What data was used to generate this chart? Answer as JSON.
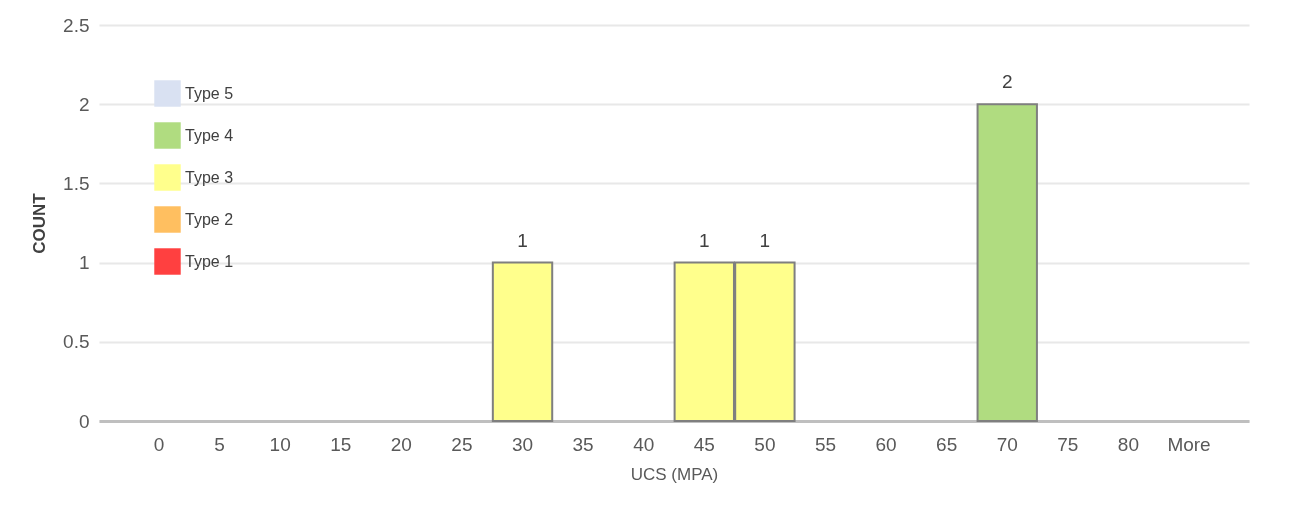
{
  "chart_data": {
    "type": "bar",
    "xlabel": "UCS (MPA)",
    "ylabel": "COUNT",
    "categories": [
      "0",
      "5",
      "10",
      "15",
      "20",
      "25",
      "30",
      "35",
      "40",
      "45",
      "50",
      "55",
      "60",
      "65",
      "70",
      "75",
      "80",
      "More"
    ],
    "series": [
      {
        "name": "Type 1",
        "color": "#ff4040",
        "values": [
          null,
          null,
          null,
          null,
          null,
          null,
          null,
          null,
          null,
          null,
          null,
          null,
          null,
          null,
          null,
          null,
          null,
          null
        ]
      },
      {
        "name": "Type 2",
        "color": "#ffbf60",
        "values": [
          null,
          null,
          null,
          null,
          null,
          null,
          null,
          null,
          null,
          null,
          null,
          null,
          null,
          null,
          null,
          null,
          null,
          null
        ]
      },
      {
        "name": "Type 3",
        "color": "#ffff8c",
        "values": [
          null,
          null,
          null,
          null,
          null,
          null,
          1,
          null,
          null,
          1,
          1,
          null,
          null,
          null,
          null,
          null,
          null,
          null
        ]
      },
      {
        "name": "Type 4",
        "color": "#b0dc80",
        "values": [
          null,
          null,
          null,
          null,
          null,
          null,
          null,
          null,
          null,
          null,
          null,
          null,
          null,
          null,
          2,
          null,
          null,
          null
        ]
      },
      {
        "name": "Type 5",
        "color": "#d9e1f2",
        "values": [
          null,
          null,
          null,
          null,
          null,
          null,
          null,
          null,
          null,
          null,
          null,
          null,
          null,
          null,
          null,
          null,
          null,
          null
        ]
      }
    ],
    "ylim": [
      0,
      2.5
    ],
    "yticks": [
      0,
      0.5,
      1,
      1.5,
      2,
      2.5
    ],
    "grid": "y",
    "legend": "top left",
    "data_labels": true
  }
}
